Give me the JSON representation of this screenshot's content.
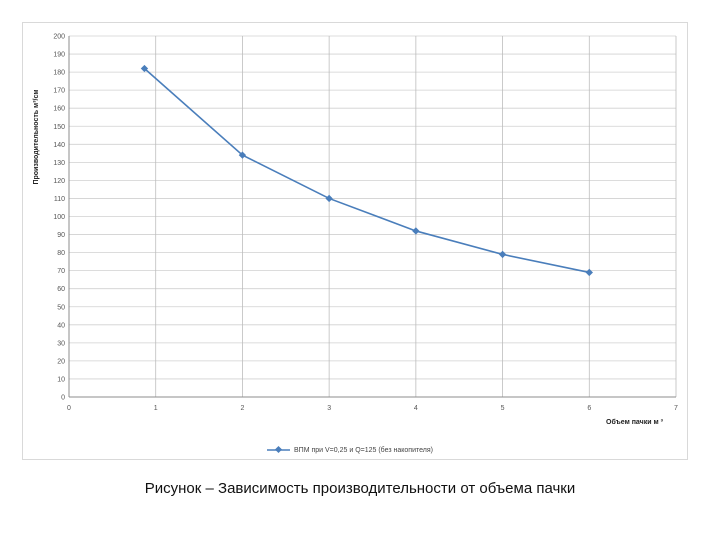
{
  "chart_data": {
    "type": "line",
    "title": "",
    "xlabel": "Объем пачки м ³",
    "ylabel": "Производительность м³/см",
    "xlim": [
      0,
      7
    ],
    "ylim": [
      0,
      200
    ],
    "x_ticks": [
      "0",
      "1",
      "2",
      "3",
      "4",
      "5",
      "6",
      "7"
    ],
    "y_ticks": [
      "0",
      "10",
      "20",
      "30",
      "40",
      "50",
      "60",
      "70",
      "80",
      "90",
      "100",
      "110",
      "120",
      "130",
      "140",
      "150",
      "160",
      "170",
      "180",
      "190",
      "200"
    ],
    "grid": {
      "horizontal": true,
      "vertical": true
    },
    "legend_position": "bottom",
    "series": [
      {
        "name": "ВПМ при V=0,25 и Q=125 (без накопителя)",
        "color": "#4a7ebb",
        "x": [
          0.87,
          2,
          3,
          4,
          5,
          6
        ],
        "y": [
          182,
          134,
          110,
          92,
          79,
          69
        ]
      }
    ]
  },
  "caption": "Рисунок – Зависимость производительности от объема пачки"
}
